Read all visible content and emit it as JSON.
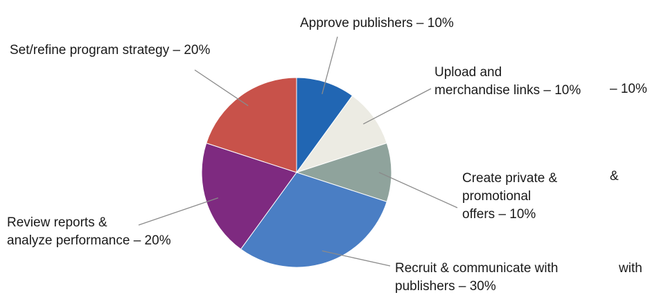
{
  "chart_data": {
    "type": "pie",
    "slices": [
      {
        "label": "Approve publishers – 10%",
        "value": 10,
        "color": "#2166b3"
      },
      {
        "label": "Upload and merchandise links – 10%",
        "lines": [
          "Upload and",
          "merchandise links – 10%"
        ],
        "value": 10,
        "color": "#ecebe3"
      },
      {
        "label": "Create private & promotional offers – 10%",
        "lines": [
          "Create private &",
          "promotional",
          "offers – 10%"
        ],
        "value": 10,
        "color": "#8fa39c"
      },
      {
        "label": "Recruit & communicate with publishers – 30%",
        "lines": [
          "Recruit & communicate with",
          "publishers – 30%"
        ],
        "value": 30,
        "color": "#4a7ec4"
      },
      {
        "label": "Review reports & analyze performance – 20%",
        "lines": [
          "Review reports &",
          "analyze performance – 20%"
        ],
        "value": 20,
        "color": "#7e2a80"
      },
      {
        "label": "Set/refine program strategy – 20%",
        "lines": [
          "Set/refine program strategy – 20%"
        ],
        "value": 20,
        "color": "#c8524a"
      }
    ],
    "start_angle_deg": 0,
    "direction": "clockwise",
    "legend": "none",
    "overlapping_fragments": [
      "– 10%",
      "&",
      "with"
    ]
  }
}
